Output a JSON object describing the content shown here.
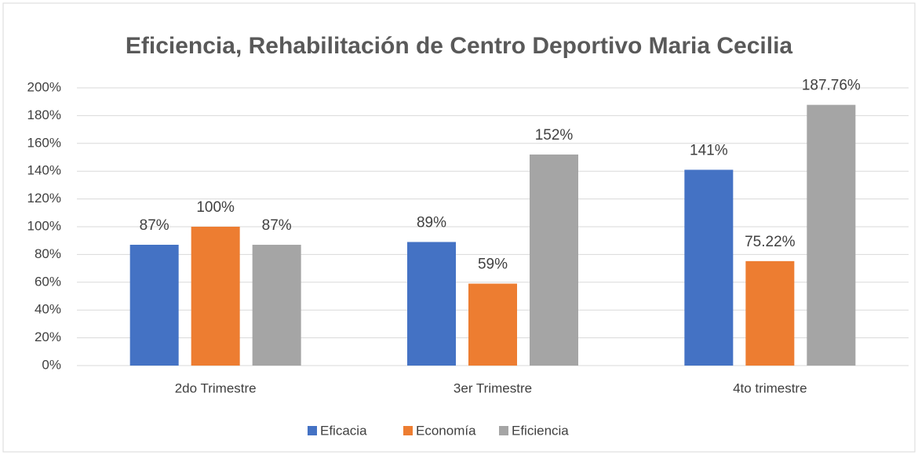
{
  "chart_data": {
    "type": "bar",
    "title": "Eficiencia, Rehabilitación de Centro Deportivo Maria Cecilia",
    "categories": [
      "2do Trimestre",
      "3er Trimestre",
      "4to trimestre"
    ],
    "series": [
      {
        "name": "Eficacia",
        "color": "#4472c4",
        "values": [
          87,
          89,
          141
        ],
        "value_labels": [
          "87%",
          "89%",
          "141%"
        ]
      },
      {
        "name": "Economía",
        "color": "#ed7d31",
        "values": [
          100,
          59,
          75.22
        ],
        "value_labels": [
          "100%",
          "59%",
          "75.22%"
        ]
      },
      {
        "name": "Eficiencia",
        "color": "#a5a5a5",
        "values": [
          87,
          152,
          187.76
        ],
        "value_labels": [
          "87%",
          "152%",
          "187.76%"
        ]
      }
    ],
    "ylim": [
      0,
      200
    ],
    "yticks": [
      {
        "value": 0,
        "label": "0%"
      },
      {
        "value": 20,
        "label": "20%"
      },
      {
        "value": 40,
        "label": "40%"
      },
      {
        "value": 60,
        "label": "60%"
      },
      {
        "value": 80,
        "label": "80%"
      },
      {
        "value": 100,
        "label": "100%"
      },
      {
        "value": 120,
        "label": "120%"
      },
      {
        "value": 140,
        "label": "140%"
      },
      {
        "value": 160,
        "label": "160%"
      },
      {
        "value": 180,
        "label": "180%"
      },
      {
        "value": 200,
        "label": "200%"
      }
    ],
    "grid": true,
    "legend": "bottom"
  }
}
